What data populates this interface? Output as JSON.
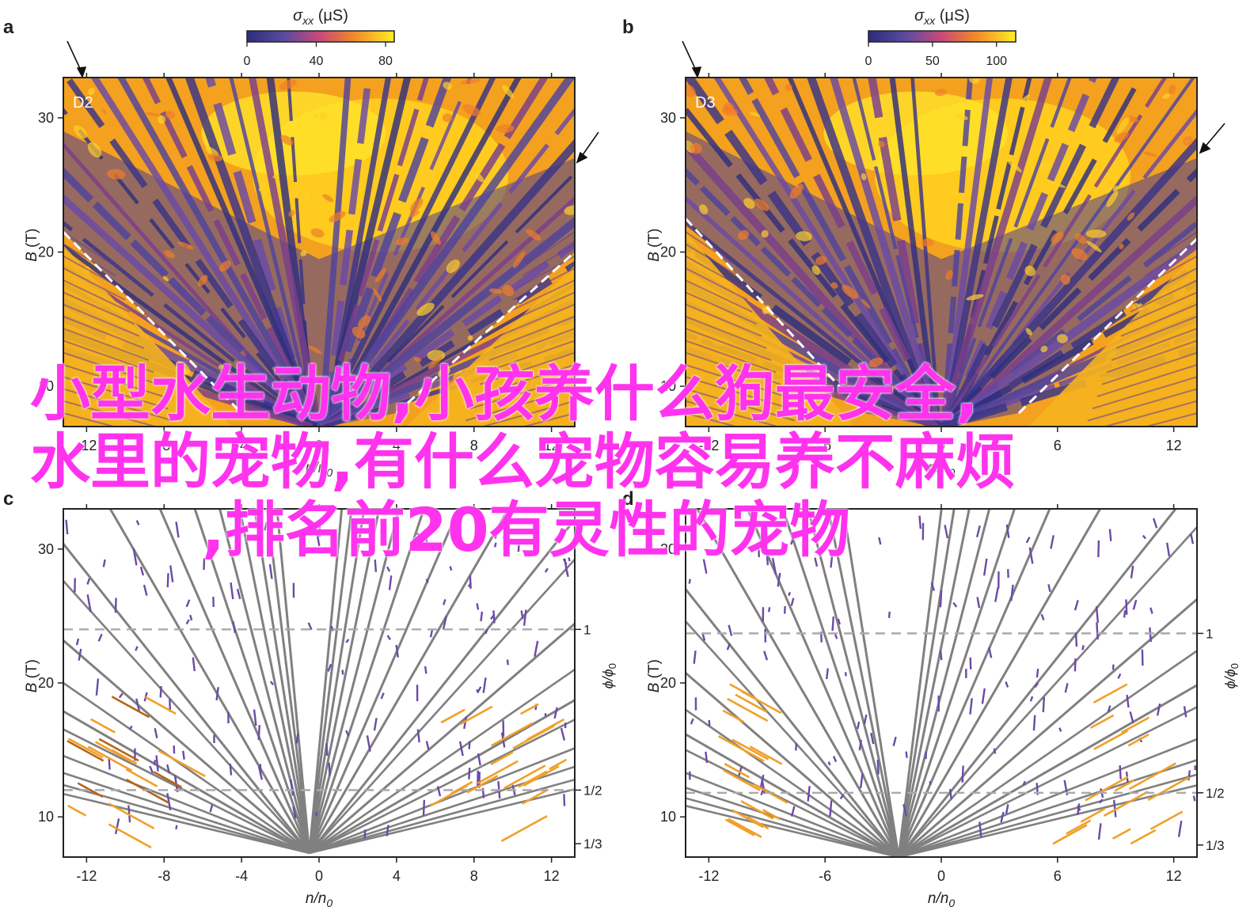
{
  "panels": [
    {
      "letter": "a",
      "label": "D2",
      "ylabel_italic": "B",
      "ylabel_unit": " (T)",
      "xlabel_text": "n/n",
      "xlabel_sub": "0",
      "colorbar_sym": "σ",
      "colorbar_sub": "xx",
      "colorbar_unit": " (μS)",
      "colorbar_ticks": [
        "0",
        "40",
        "80"
      ],
      "colorbar_range": [
        0,
        85
      ],
      "xticks": [
        "-12",
        "-8",
        "-4",
        "0",
        "4",
        "8",
        "12"
      ],
      "yticks": [
        "10",
        "20",
        "30"
      ]
    },
    {
      "letter": "b",
      "label": "D3",
      "ylabel_italic": "B",
      "ylabel_unit": " (T)",
      "xlabel_text": "n/n",
      "xlabel_sub": "0",
      "colorbar_sym": "σ",
      "colorbar_sub": "xx",
      "colorbar_unit": " (μS)",
      "colorbar_ticks": [
        "0",
        "50",
        "100"
      ],
      "colorbar_range": [
        0,
        115
      ],
      "xticks": [
        "-12",
        "-6",
        "0",
        "6",
        "12"
      ],
      "yticks": [
        "10",
        "20",
        "30"
      ]
    },
    {
      "letter": "c",
      "ylabel_italic": "B",
      "ylabel_unit": " (T)",
      "xlabel_text": "n/n",
      "xlabel_sub": "0",
      "right_label": "ϕ/ϕ",
      "right_label_sub": "0",
      "right_ticks": [
        "1",
        "1/2",
        "1/3"
      ],
      "xticks": [
        "-12",
        "-8",
        "-4",
        "0",
        "4",
        "8",
        "12"
      ],
      "yticks": [
        "10",
        "20",
        "30"
      ]
    },
    {
      "letter": "d",
      "ylabel_italic": "B",
      "ylabel_unit": " (T)",
      "xlabel_text": "n/n",
      "xlabel_sub": "0",
      "right_label": "ϕ/ϕ",
      "right_label_sub": "0",
      "right_ticks": [
        "1",
        "1/2",
        "1/3"
      ],
      "xticks": [
        "-12",
        "-6",
        "0",
        "6",
        "12"
      ],
      "yticks": [
        "10",
        "20",
        "30"
      ]
    }
  ],
  "overlay_text": {
    "line1": "小型水生动物,小孩养什么狗最安全,",
    "line2": "水里的宠物,有什么宠物容易养不麻烦",
    "line3": ",排名前20有灵性的宠物"
  },
  "chart_data": [
    {
      "type": "heatmap",
      "panel": "a",
      "xlim": [
        -13.2,
        13.2
      ],
      "ylim": [
        7,
        33
      ],
      "xlabel": "n/n0",
      "ylabel": "B (T)",
      "colorbar": {
        "label": "σxx (μS)",
        "range": [
          0,
          85
        ]
      },
      "annotations": [
        "D2"
      ],
      "dashed_lines": [
        {
          "x": [
            -13.2,
            -4.0
          ],
          "y": [
            21.5,
            8.0
          ]
        },
        {
          "x": [
            4.0,
            13.2
          ],
          "y": [
            8.0,
            20.0
          ]
        }
      ]
    },
    {
      "type": "heatmap",
      "panel": "b",
      "xlim": [
        -13.2,
        13.2
      ],
      "ylim": [
        7,
        33
      ],
      "xlabel": "n/n0",
      "ylabel": "B (T)",
      "colorbar": {
        "label": "σxx (μS)",
        "range": [
          0,
          115
        ]
      },
      "annotations": [
        "D3"
      ],
      "dashed_lines": [
        {
          "x": [
            -13.2,
            -4.0
          ],
          "y": [
            22.5,
            8.0
          ]
        },
        {
          "x": [
            4.0,
            13.2
          ],
          "y": [
            8.0,
            21.0
          ]
        }
      ]
    },
    {
      "type": "line",
      "panel": "c",
      "xlim": [
        -13.2,
        13.2
      ],
      "ylim": [
        7,
        33
      ],
      "xlabel": "n/n0",
      "ylabel": "B (T)",
      "right_axis": {
        "label": "ϕ/ϕ0",
        "ticks": [
          {
            "label": "1",
            "B": 24.0
          },
          {
            "label": "1/2",
            "B": 12.0
          },
          {
            "label": "1/3",
            "B": 8.0
          }
        ]
      },
      "hlines": [
        24.0,
        12.0
      ],
      "series": [
        {
          "color": "#808080",
          "fan_center_x": -0.5,
          "fan_center_y": 7.3,
          "slopes_left": [
            -12,
            -8,
            -5.5,
            -4,
            -3,
            -2.3,
            -1.8,
            -1.4,
            -1.1,
            -0.85,
            -0.65
          ],
          "slopes_right": [
            12,
            8,
            5.5,
            4,
            3,
            2.3,
            1.8,
            1.4,
            1.1,
            0.85,
            0.65
          ]
        }
      ]
    },
    {
      "type": "line",
      "panel": "d",
      "xlim": [
        -13.2,
        13.2
      ],
      "ylim": [
        7,
        33
      ],
      "xlabel": "n/n0",
      "ylabel": "B (T)",
      "right_axis": {
        "label": "ϕ/ϕ0",
        "ticks": [
          {
            "label": "1",
            "B": 23.7
          },
          {
            "label": "1/2",
            "B": 11.8
          },
          {
            "label": "1/3",
            "B": 7.9
          }
        ]
      },
      "hlines": [
        23.7,
        11.8
      ],
      "series": [
        {
          "color": "#808080",
          "fan_center_x": -2.2,
          "fan_center_y": 7.0,
          "slopes_left": [
            -12,
            -8,
            -5.5,
            -4,
            -3,
            -2.3,
            -1.8,
            -1.4,
            -1.1
          ],
          "slopes_right": [
            12,
            8,
            5.5,
            4,
            3,
            2.3,
            1.8,
            1.4,
            1.1,
            0.85
          ]
        }
      ]
    }
  ]
}
